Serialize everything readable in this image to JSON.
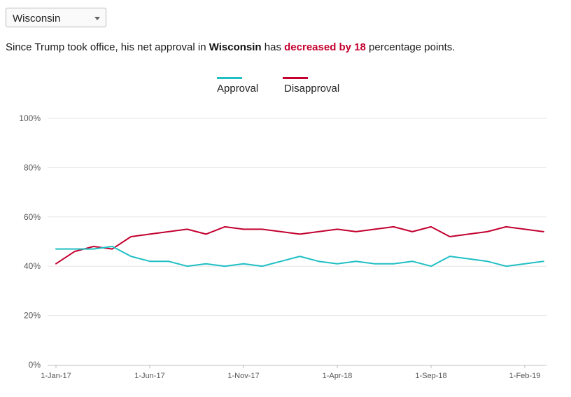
{
  "selector": {
    "value": "Wisconsin"
  },
  "summary": {
    "prefix": "Since Trump took office, his net approval in ",
    "state": "Wisconsin",
    "middle": " has ",
    "change": "decreased by 18",
    "suffix": " percentage points."
  },
  "legend": [
    {
      "label": "Approval",
      "color": "#1fbfc4"
    },
    {
      "label": "Disapproval",
      "color": "#c3002f"
    }
  ],
  "chart_data": {
    "type": "line",
    "x": [
      "1-Jan-17",
      "1-Feb-17",
      "1-Mar-17",
      "1-Apr-17",
      "1-May-17",
      "1-Jun-17",
      "1-Jul-17",
      "1-Aug-17",
      "1-Sep-17",
      "1-Oct-17",
      "1-Nov-17",
      "1-Dec-17",
      "1-Jan-18",
      "1-Feb-18",
      "1-Mar-18",
      "1-Apr-18",
      "1-May-18",
      "1-Jun-18",
      "1-Jul-18",
      "1-Aug-18",
      "1-Sep-18",
      "1-Oct-18",
      "1-Nov-18",
      "1-Dec-18",
      "1-Jan-19",
      "1-Feb-19",
      "1-Mar-19"
    ],
    "x_tick_labels": [
      "1-Jan-17",
      "1-Jun-17",
      "1-Nov-17",
      "1-Apr-18",
      "1-Sep-18",
      "1-Feb-19"
    ],
    "y_tick_labels": [
      "0%",
      "20%",
      "40%",
      "60%",
      "80%",
      "100%"
    ],
    "ylim": [
      0,
      100
    ],
    "grid": true,
    "legend_position": "top-center",
    "series": [
      {
        "name": "Approval",
        "color": "#1fbfc4",
        "values": [
          47,
          47,
          47,
          48,
          44,
          42,
          42,
          40,
          41,
          40,
          41,
          40,
          42,
          44,
          42,
          41,
          42,
          41,
          41,
          42,
          40,
          44,
          43,
          42,
          40,
          41,
          42
        ]
      },
      {
        "name": "Disapproval",
        "color": "#c3002f",
        "values": [
          41,
          46,
          48,
          47,
          52,
          53,
          54,
          55,
          53,
          56,
          55,
          55,
          54,
          53,
          54,
          55,
          54,
          55,
          56,
          54,
          56,
          52,
          53,
          54,
          56,
          55,
          54
        ]
      }
    ]
  }
}
